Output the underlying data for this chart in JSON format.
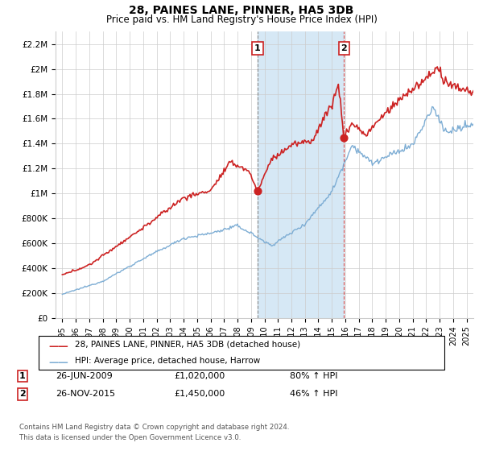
{
  "title": "28, PAINES LANE, PINNER, HA5 3DB",
  "subtitle": "Price paid vs. HM Land Registry's House Price Index (HPI)",
  "sale1_date": 2009.49,
  "sale1_price": 1020000,
  "sale1_label": "1",
  "sale2_date": 2015.91,
  "sale2_price": 1450000,
  "sale2_label": "2",
  "hpi_line_color": "#7dadd4",
  "price_line_color": "#cc2222",
  "sale_dot_color": "#cc2222",
  "highlight_color": "#d6e8f5",
  "grid_color": "#cccccc",
  "ylim_min": 0,
  "ylim_max": 2300000,
  "yticks": [
    0,
    200000,
    400000,
    600000,
    800000,
    1000000,
    1200000,
    1400000,
    1600000,
    1800000,
    2000000,
    2200000
  ],
  "ytick_labels": [
    "£0",
    "£200K",
    "£400K",
    "£600K",
    "£800K",
    "£1M",
    "£1.2M",
    "£1.4M",
    "£1.6M",
    "£1.8M",
    "£2M",
    "£2.2M"
  ],
  "xlim_min": 1994.5,
  "xlim_max": 2025.5,
  "xticks": [
    1995,
    1996,
    1997,
    1998,
    1999,
    2000,
    2001,
    2002,
    2003,
    2004,
    2005,
    2006,
    2007,
    2008,
    2009,
    2010,
    2011,
    2012,
    2013,
    2014,
    2015,
    2016,
    2017,
    2018,
    2019,
    2020,
    2021,
    2022,
    2023,
    2024,
    2025
  ],
  "legend_label_price": "28, PAINES LANE, PINNER, HA5 3DB (detached house)",
  "legend_label_hpi": "HPI: Average price, detached house, Harrow",
  "footer_line1": "Contains HM Land Registry data © Crown copyright and database right 2024.",
  "footer_line2": "This data is licensed under the Open Government Licence v3.0.",
  "ann1_num": "1",
  "ann1_date": "26-JUN-2009",
  "ann1_price": "£1,020,000",
  "ann1_hpi": "80% ↑ HPI",
  "ann2_num": "2",
  "ann2_date": "26-NOV-2015",
  "ann2_price": "£1,450,000",
  "ann2_hpi": "46% ↑ HPI",
  "background_color": "#ffffff"
}
